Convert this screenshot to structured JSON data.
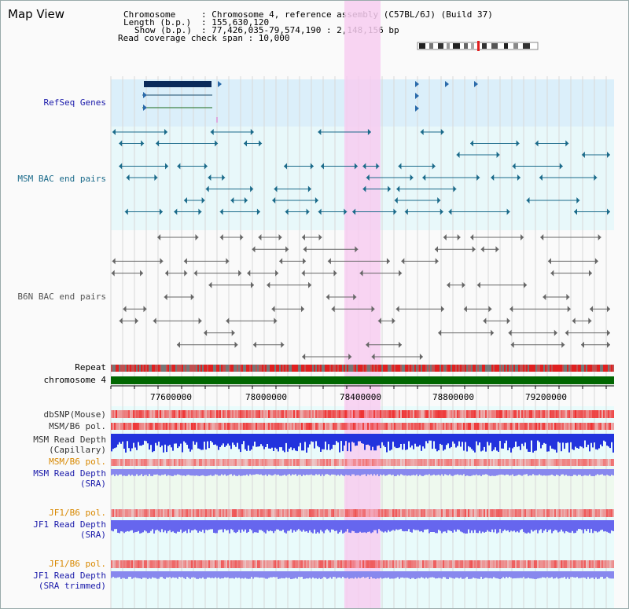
{
  "page": {
    "title": "Map View"
  },
  "header": {
    "chromosome_key": "Chromosome",
    "chromosome_val": ": Chromosome 4, reference assembly (C57BL/6J) (Build 37)",
    "length_key": "Length (b.p.)",
    "length_val": ": 155,630,120",
    "show_key": "Show (b.p.)",
    "show_val": ": 77,426,035-79,574,190 : 2,148,156 bp",
    "coverage_text": "Read coverage check span : 10,000"
  },
  "tracks": {
    "refseq": "RefSeq Genes",
    "msm_bac": "MSM BAC end pairs",
    "b6n_bac": "B6N BAC end pairs",
    "repeat": "Repeat",
    "chromosome": "chromosome 4",
    "dbsnp": "dbSNP(Mouse)",
    "msm_b6_pol": "MSM/B6 pol.",
    "msm_read_depth_cap_1": "MSM Read Depth",
    "msm_read_depth_cap_2": "(Capillary)",
    "msm_b6_pol_2": "MSM/B6 pol.",
    "msm_read_depth_sra_1": "MSM Read Depth",
    "msm_read_depth_sra_2": "(SRA)",
    "jf1_b6_pol": "JF1/B6 pol.",
    "jf1_read_depth_1": "JF1 Read Depth",
    "jf1_read_depth_2": "(SRA)",
    "jf1_b6_pol_2": "JF1/B6 pol.",
    "jf1_read_depth_trim_1": "JF1 Read Depth",
    "jf1_read_depth_trim_2": "(SRA trimmed)"
  },
  "axis": {
    "ticks": [
      "77600000",
      "78000000",
      "78400000",
      "78800000",
      "79200000"
    ]
  },
  "colors": {
    "refseq_label": "#1a1aaa",
    "msm_label": "#1a6a8a",
    "b6n_label": "#555555",
    "orange_label": "#d88800",
    "blue_label": "#1a1aaa",
    "highlight": "#f7ccf0",
    "chromosome_bar": "#006600"
  }
}
